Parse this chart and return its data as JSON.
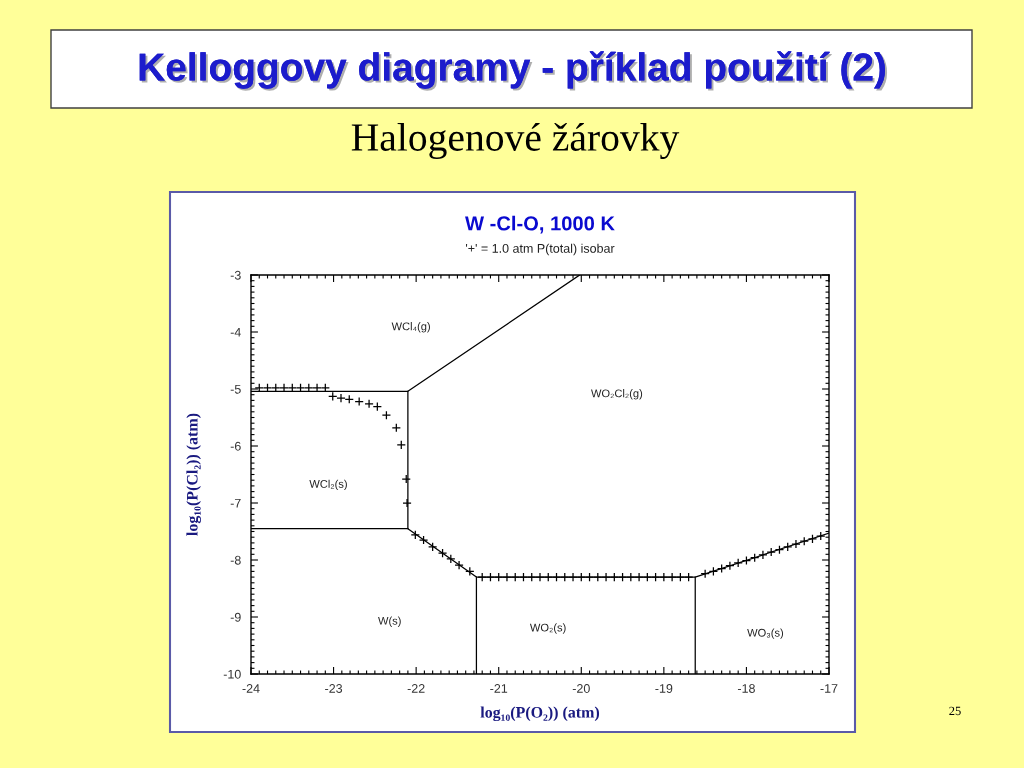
{
  "chart_data": {
    "type": "line",
    "title": "W -Cl-O, 1000 K",
    "subtitle": "'+' = 1.0 atm P(total) isobar",
    "xlabel": "log₁₀(P(O₂)) (atm)",
    "ylabel": "log₁₀(P(Cl₂)) (atm)",
    "xlim": [
      -24,
      -17
    ],
    "ylim": [
      -10,
      -3
    ],
    "xticks": [
      -24,
      -23,
      -22,
      -21,
      -20,
      -19,
      -18,
      -17
    ],
    "yticks": [
      -10,
      -9,
      -8,
      -7,
      -6,
      -5,
      -4,
      -3
    ],
    "series": [
      {
        "color": "#000000",
        "x": [
          -24,
          -22.1,
          -20.02
        ],
        "values": [
          -5.04,
          -5.04,
          -3
        ]
      },
      {
        "color": "#000000",
        "x": [
          -22.1,
          -22.1,
          -21.27,
          -18.62,
          -17
        ],
        "values": [
          -5.04,
          -7.45,
          -8.3,
          -8.3,
          -7.53
        ]
      },
      {
        "color": "#000000",
        "x": [
          -24,
          -22.1
        ],
        "values": [
          -7.45,
          -7.45
        ]
      },
      {
        "color": "#000000",
        "x": [
          -21.27,
          -21.27
        ],
        "values": [
          -8.3,
          -10
        ]
      },
      {
        "color": "#000000",
        "x": [
          -18.62,
          -18.62
        ],
        "values": [
          -8.3,
          -10
        ]
      },
      {
        "type": "scatter",
        "color": "#000000",
        "marker": "cross",
        "x": [
          -23.9,
          -23.8,
          -23.7,
          -23.6,
          -23.5,
          -23.4,
          -23.3,
          -23.2,
          -23.1,
          -23.01,
          -22.91,
          -22.81,
          -22.69,
          -22.57,
          -22.47,
          -22.36,
          -22.24,
          -22.18,
          -22.12,
          -22.11,
          -22.01,
          -21.91,
          -21.8,
          -21.68,
          -21.58,
          -21.48,
          -21.35,
          -21.2,
          -21.1,
          -21.0,
          -20.9,
          -20.8,
          -20.7,
          -20.6,
          -20.5,
          -20.4,
          -20.3,
          -20.2,
          -20.1,
          -20.0,
          -19.9,
          -19.8,
          -19.7,
          -19.6,
          -19.5,
          -19.4,
          -19.3,
          -19.2,
          -19.1,
          -19.0,
          -18.9,
          -18.8,
          -18.7,
          -18.5,
          -18.4,
          -18.3,
          -18.2,
          -18.1,
          -18.0,
          -17.9,
          -17.8,
          -17.7,
          -17.6,
          -17.5,
          -17.4,
          -17.3,
          -17.2,
          -17.1
        ],
        "values": [
          -4.98,
          -4.98,
          -4.98,
          -4.98,
          -4.98,
          -4.98,
          -4.98,
          -4.98,
          -4.98,
          -5.13,
          -5.16,
          -5.18,
          -5.22,
          -5.26,
          -5.31,
          -5.46,
          -5.68,
          -5.98,
          -6.58,
          -7.0,
          -7.56,
          -7.65,
          -7.77,
          -7.88,
          -7.98,
          -8.09,
          -8.2,
          -8.3,
          -8.3,
          -8.3,
          -8.3,
          -8.3,
          -8.3,
          -8.3,
          -8.3,
          -8.3,
          -8.3,
          -8.3,
          -8.3,
          -8.3,
          -8.3,
          -8.3,
          -8.3,
          -8.3,
          -8.3,
          -8.3,
          -8.3,
          -8.3,
          -8.3,
          -8.3,
          -8.3,
          -8.3,
          -8.3,
          -8.24,
          -8.2,
          -8.15,
          -8.1,
          -8.05,
          -8.01,
          -7.96,
          -7.91,
          -7.86,
          -7.82,
          -7.77,
          -7.72,
          -7.67,
          -7.63,
          -7.58
        ]
      }
    ],
    "annotations": [
      "Kelloggovy diagramy - příklad použití (2)",
      "Halogenové žárovky",
      "WCl₄(g)",
      "WO₂Cl₂(g)",
      "WCl₂(s)",
      "W(s)",
      "WO₂(s)",
      "WO₃(s)",
      "25"
    ]
  }
}
